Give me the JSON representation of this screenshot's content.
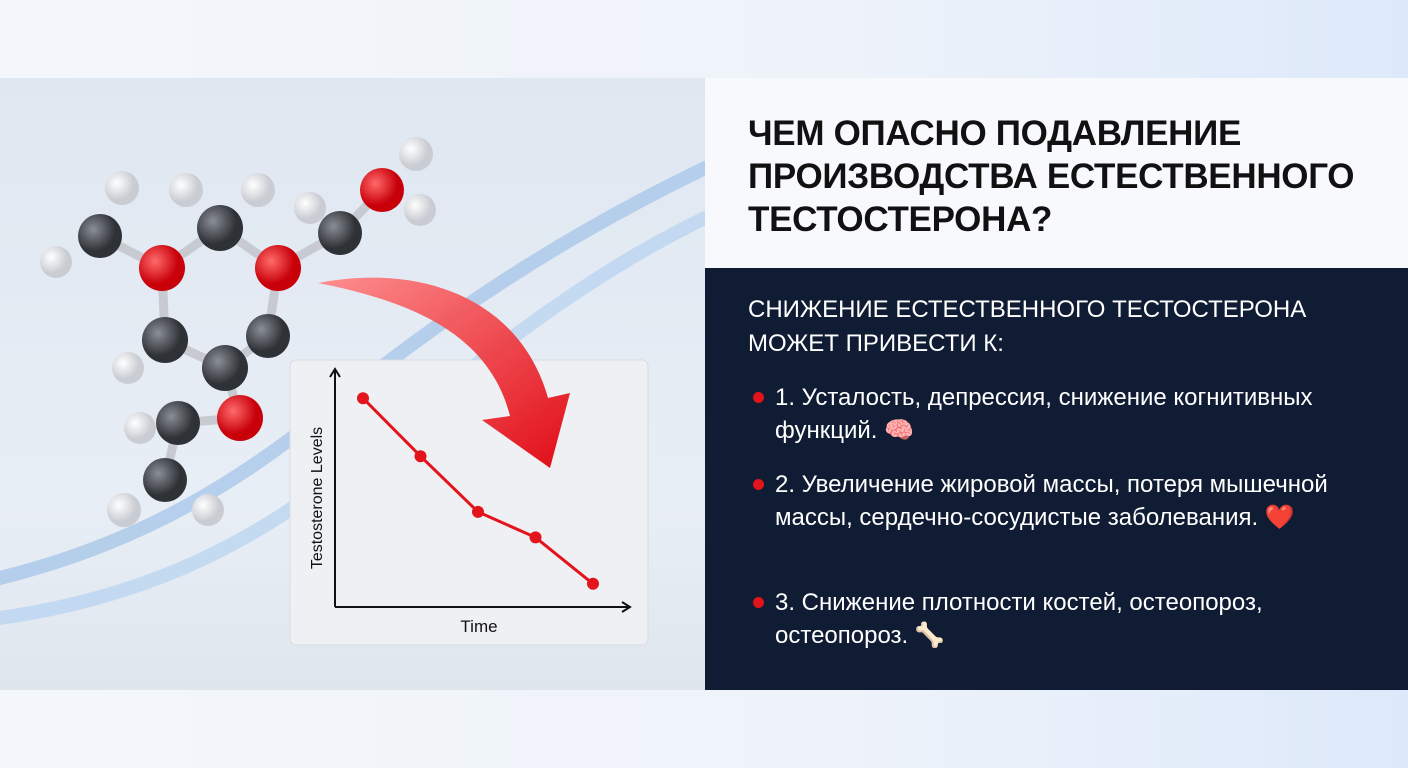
{
  "header": {
    "title": "ЧЕМ ОПАСНО ПОДАВЛЕНИЕ ПРОИЗВОДСТВА ЕСТЕСТВЕННОГО ТЕСТОСТЕРОНА?"
  },
  "content": {
    "intro": "СНИЖЕНИЕ ЕСТЕСТВЕННОГО ТЕСТОСТЕРОНА МОЖЕТ ПРИВЕСТИ К:",
    "items": [
      "1. Усталость, депрессия, снижение когнитивных функций. 🧠",
      "2. Увеличение жировой массы, потеря мышечной массы, сердечно-сосудистые заболевания. ❤️",
      "3. Снижение плотности костей, остеопороз, остеопороз. 🦴"
    ]
  },
  "chart_data": {
    "type": "line",
    "x_label": "Time",
    "y_label": "Testosterone Levels",
    "values": [
      90,
      65,
      41,
      30,
      10
    ],
    "ylim": [
      0,
      100
    ],
    "color": "#e3141b"
  }
}
